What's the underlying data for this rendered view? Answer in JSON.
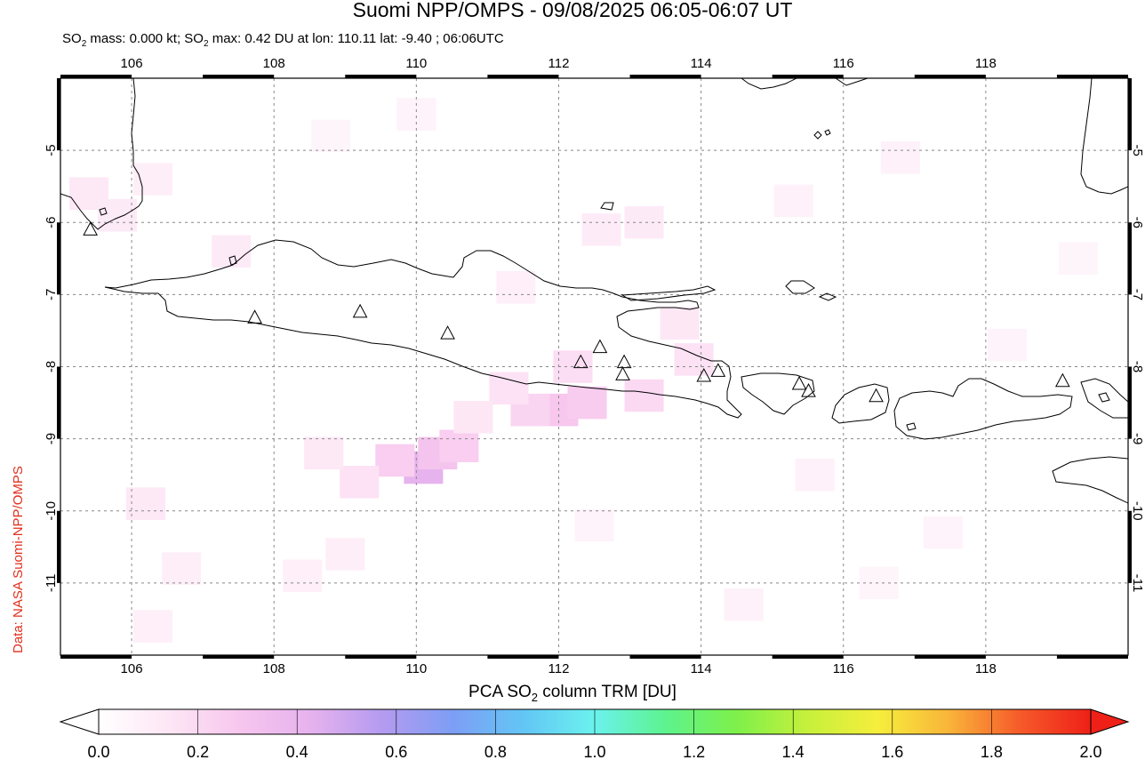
{
  "title": "Suomi NPP/OMPS - 09/08/2025 06:05-06:07 UT",
  "subtitle": {
    "prefix": "SO",
    "sub": "2",
    "mid": " mass: 0.000 kt; SO",
    "sub2": "2",
    "suffix": " max: 0.42 DU at lon: 110.11 lat: -9.40 ; 06:06UTC"
  },
  "credit": "Data: NASA Suomi-NPP/OMPS",
  "map": {
    "lon_range": [
      105.0,
      120.0
    ],
    "lat_range": [
      -12.0,
      -4.0
    ],
    "lon_ticks": [
      106,
      108,
      110,
      112,
      114,
      116,
      118
    ],
    "lat_ticks": [
      -5,
      -6,
      -7,
      -8,
      -9,
      -10,
      -11
    ],
    "lon_tick_labels": [
      "106",
      "108",
      "110",
      "112",
      "114",
      "116",
      "118"
    ],
    "lat_tick_labels": [
      "-5",
      "-6",
      "-7",
      "-8",
      "-9",
      "-10",
      "-11"
    ],
    "volcanoes": [
      [
        105.42,
        -6.1
      ],
      [
        107.73,
        -7.32
      ],
      [
        109.21,
        -7.24
      ],
      [
        110.44,
        -7.54
      ],
      [
        112.31,
        -7.94
      ],
      [
        112.58,
        -7.73
      ],
      [
        112.92,
        -7.94
      ],
      [
        112.9,
        -8.11
      ],
      [
        114.04,
        -8.13
      ],
      [
        114.24,
        -8.06
      ],
      [
        115.38,
        -8.24
      ],
      [
        115.51,
        -8.34
      ],
      [
        116.46,
        -8.41
      ],
      [
        119.08,
        -8.2
      ]
    ],
    "so2_patches": [
      {
        "lon": 110.1,
        "lat": -9.4,
        "du": 0.42
      },
      {
        "lon": 110.3,
        "lat": -9.2,
        "du": 0.3
      },
      {
        "lon": 110.6,
        "lat": -9.1,
        "du": 0.25
      },
      {
        "lon": 109.7,
        "lat": -9.3,
        "du": 0.25
      },
      {
        "lon": 112.0,
        "lat": -8.6,
        "du": 0.28
      },
      {
        "lon": 112.4,
        "lat": -8.5,
        "du": 0.26
      },
      {
        "lon": 111.6,
        "lat": -8.6,
        "du": 0.22
      },
      {
        "lon": 113.2,
        "lat": -8.4,
        "du": 0.2
      },
      {
        "lon": 112.2,
        "lat": -8.0,
        "du": 0.18
      },
      {
        "lon": 111.3,
        "lat": -8.3,
        "du": 0.16
      },
      {
        "lon": 110.8,
        "lat": -8.7,
        "du": 0.14
      },
      {
        "lon": 109.2,
        "lat": -9.6,
        "du": 0.16
      },
      {
        "lon": 108.7,
        "lat": -9.2,
        "du": 0.13
      },
      {
        "lon": 113.7,
        "lat": -7.4,
        "du": 0.14
      },
      {
        "lon": 113.9,
        "lat": -7.9,
        "du": 0.16
      },
      {
        "lon": 113.2,
        "lat": -6.0,
        "du": 0.12
      },
      {
        "lon": 112.6,
        "lat": -6.1,
        "du": 0.11
      },
      {
        "lon": 105.4,
        "lat": -5.6,
        "du": 0.13
      },
      {
        "lon": 105.8,
        "lat": -5.9,
        "du": 0.12
      },
      {
        "lon": 106.3,
        "lat": -5.4,
        "du": 0.1
      },
      {
        "lon": 107.4,
        "lat": -6.4,
        "du": 0.12
      },
      {
        "lon": 106.2,
        "lat": -9.9,
        "du": 0.13
      },
      {
        "lon": 106.7,
        "lat": -10.8,
        "du": 0.1
      },
      {
        "lon": 106.3,
        "lat": -11.6,
        "du": 0.09
      },
      {
        "lon": 109.0,
        "lat": -10.6,
        "du": 0.1
      },
      {
        "lon": 108.4,
        "lat": -10.9,
        "du": 0.09
      },
      {
        "lon": 111.4,
        "lat": -6.9,
        "du": 0.09
      },
      {
        "lon": 115.6,
        "lat": -9.5,
        "du": 0.08
      },
      {
        "lon": 116.8,
        "lat": -5.1,
        "du": 0.08
      },
      {
        "lon": 115.3,
        "lat": -5.7,
        "du": 0.08
      },
      {
        "lon": 117.4,
        "lat": -10.3,
        "du": 0.07
      },
      {
        "lon": 112.5,
        "lat": -10.2,
        "du": 0.07
      },
      {
        "lon": 114.6,
        "lat": -11.3,
        "du": 0.08
      },
      {
        "lon": 118.3,
        "lat": -7.7,
        "du": 0.07
      },
      {
        "lon": 110.0,
        "lat": -4.5,
        "du": 0.07
      },
      {
        "lon": 108.8,
        "lat": -4.8,
        "du": 0.06
      },
      {
        "lon": 119.3,
        "lat": -6.5,
        "du": 0.06
      },
      {
        "lon": 116.5,
        "lat": -11.0,
        "du": 0.06
      }
    ]
  },
  "colorbar": {
    "label_pre": "PCA SO",
    "label_sub": "2",
    "label_post": " column TRM [DU]",
    "min": 0.0,
    "max": 2.0,
    "tick_labels": [
      "0.0",
      "0.2",
      "0.4",
      "0.6",
      "0.8",
      "1.0",
      "1.2",
      "1.4",
      "1.6",
      "1.8",
      "2.0"
    ],
    "colors": [
      "#ffffff",
      "#fde6f5",
      "#f7c6ee",
      "#e6b2ee",
      "#b49bf0",
      "#7d9ef5",
      "#63c6f5",
      "#6bf2ee",
      "#5df38e",
      "#7ef04a",
      "#c6f03c",
      "#f6ee3c",
      "#f9b43a",
      "#f65a2a",
      "#ee2018"
    ]
  }
}
